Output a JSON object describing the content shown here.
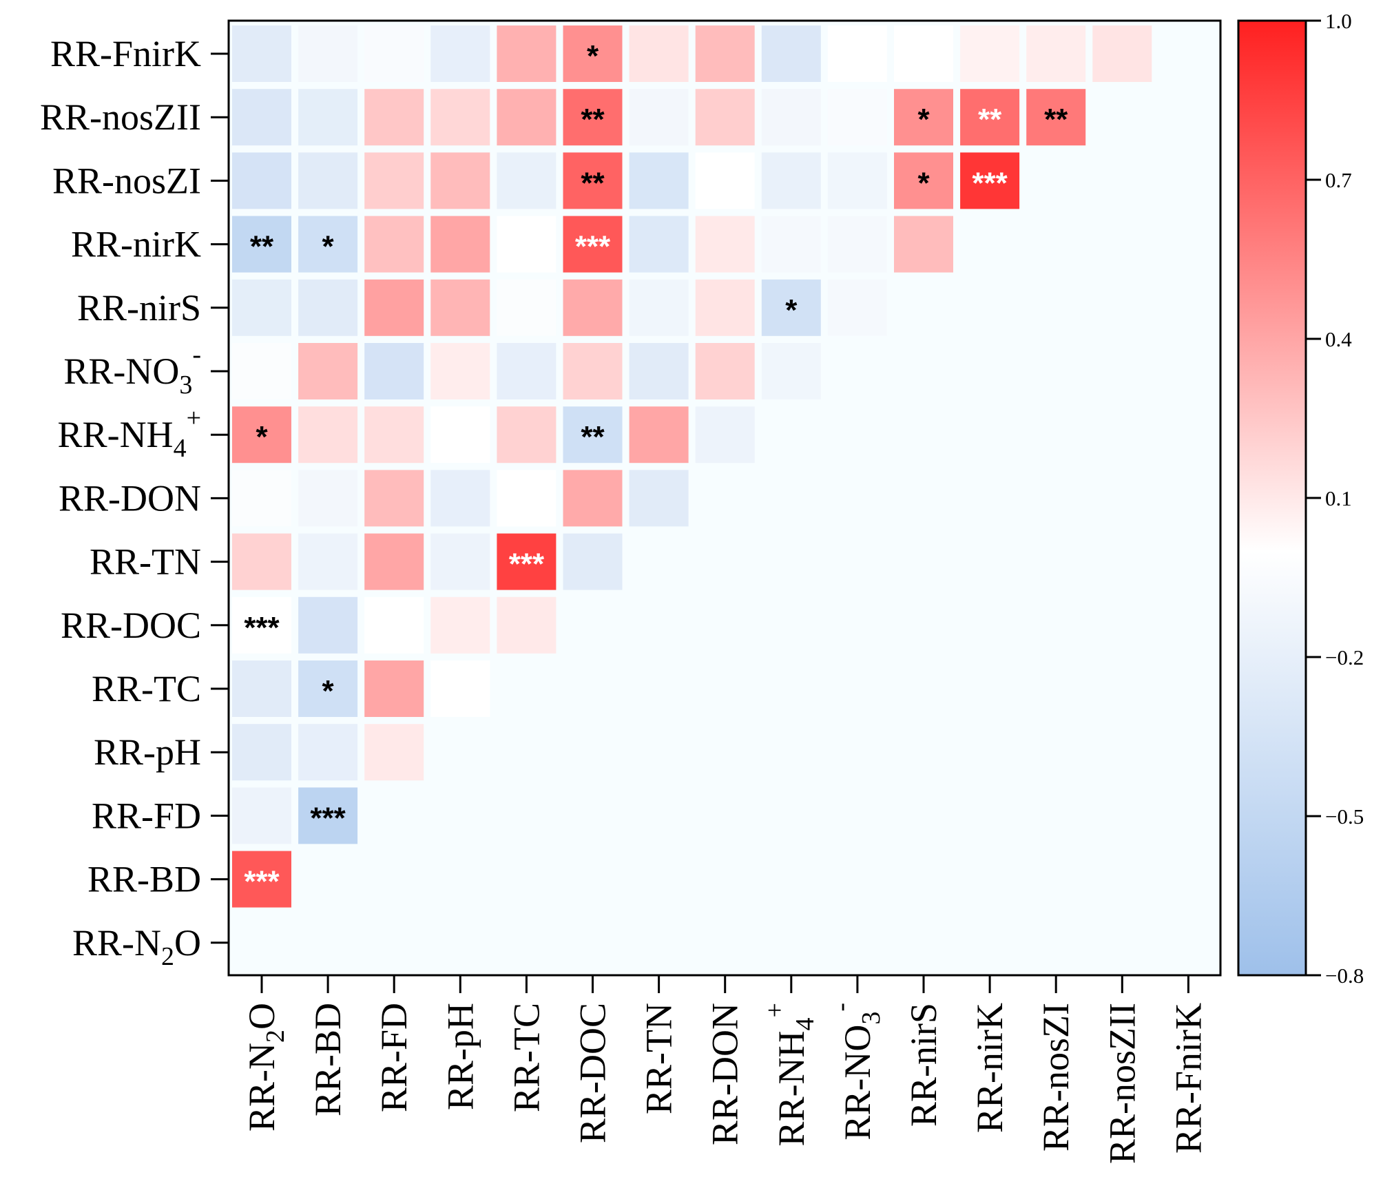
{
  "chart_data": {
    "type": "heatmap",
    "title": "",
    "variables": [
      {
        "name": "RR-N2O",
        "base": "RR-N",
        "sub": "2",
        "sup": "",
        "tail": "O"
      },
      {
        "name": "RR-BD",
        "base": "RR-BD",
        "sub": "",
        "sup": "",
        "tail": ""
      },
      {
        "name": "RR-FD",
        "base": "RR-FD",
        "sub": "",
        "sup": "",
        "tail": ""
      },
      {
        "name": "RR-pH",
        "base": "RR-pH",
        "sub": "",
        "sup": "",
        "tail": ""
      },
      {
        "name": "RR-TC",
        "base": "RR-TC",
        "sub": "",
        "sup": "",
        "tail": ""
      },
      {
        "name": "RR-DOC",
        "base": "RR-DOC",
        "sub": "",
        "sup": "",
        "tail": ""
      },
      {
        "name": "RR-TN",
        "base": "RR-TN",
        "sub": "",
        "sup": "",
        "tail": ""
      },
      {
        "name": "RR-DON",
        "base": "RR-DON",
        "sub": "",
        "sup": "",
        "tail": ""
      },
      {
        "name": "RR-NH4+",
        "base": "RR-NH",
        "sub": "4",
        "sup": "+",
        "tail": ""
      },
      {
        "name": "RR-NO3-",
        "base": "RR-NO",
        "sub": "3",
        "sup": "-",
        "tail": ""
      },
      {
        "name": "RR-nirS",
        "base": "RR-nirS",
        "sub": "",
        "sup": "",
        "tail": ""
      },
      {
        "name": "RR-nirK",
        "base": "RR-nirK",
        "sub": "",
        "sup": "",
        "tail": ""
      },
      {
        "name": "RR-nosZI",
        "base": "RR-nosZI",
        "sub": "",
        "sup": "",
        "tail": ""
      },
      {
        "name": "RR-nosZII",
        "base": "RR-nosZII",
        "sub": "",
        "sup": "",
        "tail": ""
      },
      {
        "name": "RR-FnirK",
        "base": "RR-FnirK",
        "sub": "",
        "sup": "",
        "tail": ""
      }
    ],
    "correlations": [
      {
        "row": "RR-BD",
        "values": [
          0.75
        ]
      },
      {
        "row": "RR-FD",
        "values": [
          -0.15,
          -0.55
        ]
      },
      {
        "row": "RR-pH",
        "values": [
          -0.25,
          -0.2,
          0.1
        ]
      },
      {
        "row": "RR-TC",
        "values": [
          -0.25,
          -0.4,
          0.4,
          0.0
        ]
      },
      {
        "row": "RR-DOC",
        "values": [
          0.0,
          -0.35,
          0.0,
          0.08,
          0.1
        ]
      },
      {
        "row": "RR-TN",
        "values": [
          0.2,
          -0.15,
          0.4,
          -0.15,
          0.85,
          -0.25
        ]
      },
      {
        "row": "RR-DON",
        "values": [
          -0.03,
          -0.1,
          0.3,
          -0.2,
          0.0,
          0.38,
          -0.25
        ]
      },
      {
        "row": "RR-NH4+",
        "values": [
          0.5,
          0.15,
          0.15,
          0.0,
          0.2,
          -0.4,
          0.4,
          -0.15
        ]
      },
      {
        "row": "RR-NO3-",
        "values": [
          -0.03,
          0.3,
          -0.35,
          0.08,
          -0.2,
          0.2,
          -0.25,
          0.2,
          -0.12
        ]
      },
      {
        "row": "RR-nirS",
        "values": [
          -0.22,
          -0.25,
          0.42,
          0.33,
          -0.03,
          0.38,
          -0.12,
          0.12,
          -0.38,
          -0.08
        ]
      },
      {
        "row": "RR-nirK",
        "values": [
          -0.5,
          -0.4,
          0.28,
          0.4,
          0.0,
          0.75,
          -0.28,
          0.1,
          -0.08,
          -0.08,
          0.3
        ]
      },
      {
        "row": "RR-nosZI",
        "values": [
          -0.35,
          -0.25,
          0.22,
          0.3,
          -0.18,
          0.7,
          -0.32,
          0.0,
          -0.18,
          -0.12,
          0.5,
          0.9
        ]
      },
      {
        "row": "RR-nosZII",
        "values": [
          -0.3,
          -0.22,
          0.25,
          0.18,
          0.35,
          0.65,
          -0.1,
          0.22,
          -0.1,
          -0.05,
          0.5,
          0.65,
          0.6
        ]
      },
      {
        "row": "RR-FnirK",
        "values": [
          -0.25,
          -0.1,
          -0.05,
          -0.2,
          0.35,
          0.5,
          0.12,
          0.3,
          -0.3,
          0.0,
          0.0,
          0.06,
          0.08,
          0.12
        ]
      }
    ],
    "significance": [
      {
        "row": "RR-BD",
        "col": "RR-N2O",
        "stars": "***",
        "star_color": "#ffffff"
      },
      {
        "row": "RR-FD",
        "col": "RR-BD",
        "stars": "***",
        "star_color": "#000000"
      },
      {
        "row": "RR-TC",
        "col": "RR-BD",
        "stars": "*",
        "star_color": "#000000"
      },
      {
        "row": "RR-DOC",
        "col": "RR-N2O",
        "stars": "***",
        "star_color": "#000000"
      },
      {
        "row": "RR-TN",
        "col": "RR-TC",
        "stars": "***",
        "star_color": "#ffffff"
      },
      {
        "row": "RR-NH4+",
        "col": "RR-N2O",
        "stars": "*",
        "star_color": "#000000"
      },
      {
        "row": "RR-NH4+",
        "col": "RR-DOC",
        "stars": "**",
        "star_color": "#000000"
      },
      {
        "row": "RR-nirS",
        "col": "RR-NH4+",
        "stars": "*",
        "star_color": "#000000"
      },
      {
        "row": "RR-nirK",
        "col": "RR-N2O",
        "stars": "**",
        "star_color": "#000000"
      },
      {
        "row": "RR-nirK",
        "col": "RR-BD",
        "stars": "*",
        "star_color": "#000000"
      },
      {
        "row": "RR-nirK",
        "col": "RR-DOC",
        "stars": "***",
        "star_color": "#ffffff"
      },
      {
        "row": "RR-nosZI",
        "col": "RR-DOC",
        "stars": "**",
        "star_color": "#000000"
      },
      {
        "row": "RR-nosZI",
        "col": "RR-nirS",
        "stars": "*",
        "star_color": "#000000"
      },
      {
        "row": "RR-nosZI",
        "col": "RR-nirK",
        "stars": "***",
        "star_color": "#ffffff"
      },
      {
        "row": "RR-nosZII",
        "col": "RR-DOC",
        "stars": "**",
        "star_color": "#000000"
      },
      {
        "row": "RR-nosZII",
        "col": "RR-nirS",
        "stars": "*",
        "star_color": "#000000"
      },
      {
        "row": "RR-nosZII",
        "col": "RR-nirK",
        "stars": "**",
        "star_color": "#ffffff"
      },
      {
        "row": "RR-nosZII",
        "col": "RR-nosZI",
        "stars": "**",
        "star_color": "#000000"
      },
      {
        "row": "RR-FnirK",
        "col": "RR-DOC",
        "stars": "*",
        "star_color": "#000000"
      }
    ],
    "colorbar": {
      "min": -0.8,
      "max": 1.0,
      "ticks": [
        1.0,
        0.7,
        0.4,
        0.1,
        -0.2,
        -0.5,
        -0.8
      ],
      "tick_labels": [
        "1.0",
        "0.7",
        "0.4",
        "0.1",
        "−0.2",
        "−0.5",
        "−0.8"
      ],
      "colors": {
        "negative": "#9ec0ea",
        "neutral": "#ffffff",
        "positive": "#ff2020"
      }
    },
    "plot_background": "#f7fdff"
  }
}
